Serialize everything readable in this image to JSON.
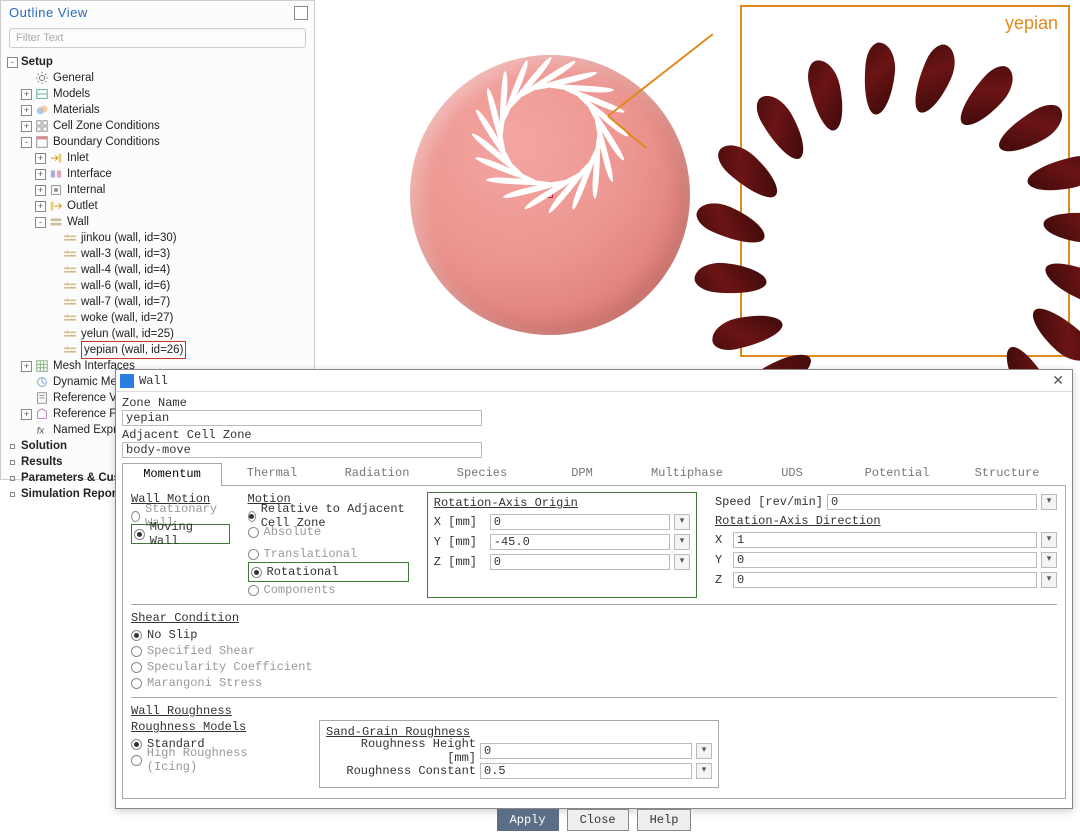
{
  "outline": {
    "title": "Outline View",
    "filter_placeholder": "Filter Text",
    "nodes": [
      {
        "lvl": 1,
        "tw": "-",
        "icon": "none",
        "label": "Setup",
        "bold": true
      },
      {
        "lvl": 2,
        "tw": " ",
        "icon": "gear",
        "label": "General"
      },
      {
        "lvl": 2,
        "tw": "+",
        "icon": "models",
        "label": "Models"
      },
      {
        "lvl": 2,
        "tw": "+",
        "icon": "materials",
        "label": "Materials"
      },
      {
        "lvl": 2,
        "tw": "+",
        "icon": "cell",
        "label": "Cell Zone Conditions"
      },
      {
        "lvl": 2,
        "tw": "-",
        "icon": "bc",
        "label": "Boundary Conditions"
      },
      {
        "lvl": 3,
        "tw": "+",
        "icon": "inlet",
        "label": "Inlet"
      },
      {
        "lvl": 3,
        "tw": "+",
        "icon": "interface",
        "label": "Interface"
      },
      {
        "lvl": 3,
        "tw": "+",
        "icon": "internal",
        "label": "Internal"
      },
      {
        "lvl": 3,
        "tw": "+",
        "icon": "outlet",
        "label": "Outlet"
      },
      {
        "lvl": 3,
        "tw": "-",
        "icon": "wall",
        "label": "Wall"
      },
      {
        "lvl": 4,
        "tw": " ",
        "icon": "wallitem",
        "label": "jinkou (wall, id=30)"
      },
      {
        "lvl": 4,
        "tw": " ",
        "icon": "wallitem",
        "label": "wall-3 (wall, id=3)"
      },
      {
        "lvl": 4,
        "tw": " ",
        "icon": "wallitem",
        "label": "wall-4 (wall, id=4)"
      },
      {
        "lvl": 4,
        "tw": " ",
        "icon": "wallitem",
        "label": "wall-6 (wall, id=6)"
      },
      {
        "lvl": 4,
        "tw": " ",
        "icon": "wallitem",
        "label": "wall-7 (wall, id=7)"
      },
      {
        "lvl": 4,
        "tw": " ",
        "icon": "wallitem",
        "label": "woke (wall, id=27)"
      },
      {
        "lvl": 4,
        "tw": " ",
        "icon": "wallitem",
        "label": "yelun (wall, id=25)"
      },
      {
        "lvl": 4,
        "tw": " ",
        "icon": "wallitem",
        "label": "yepian (wall, id=26)",
        "hl": true
      },
      {
        "lvl": 2,
        "tw": "+",
        "icon": "mesh",
        "label": "Mesh Interfaces"
      },
      {
        "lvl": 2,
        "tw": " ",
        "icon": "dyn",
        "label": "Dynamic Mes"
      },
      {
        "lvl": 2,
        "tw": " ",
        "icon": "ref",
        "label": "Reference Va"
      },
      {
        "lvl": 2,
        "tw": "+",
        "icon": "frame",
        "label": "Reference Fra"
      },
      {
        "lvl": 2,
        "tw": " ",
        "icon": "fx",
        "label": "Named Expre"
      },
      {
        "lvl": 1,
        "tw": "",
        "icon": "bullet",
        "label": "Solution",
        "bold": true
      },
      {
        "lvl": 1,
        "tw": "",
        "icon": "bullet",
        "label": "Results",
        "bold": true
      },
      {
        "lvl": 1,
        "tw": "",
        "icon": "bullet",
        "label": "Parameters & Cus",
        "bold": true
      },
      {
        "lvl": 1,
        "tw": "",
        "icon": "bullet",
        "label": "Simulation Repor",
        "bold": true
      }
    ]
  },
  "callout_label": "yepian",
  "callout": {
    "border_color": "#e08a1c"
  },
  "turbine": {
    "blades": 20,
    "disc_color_light": "#f4a6a3",
    "disc_color_dark": "#d56b64",
    "blade_color": "#6b1414"
  },
  "dlg": {
    "title": "Wall",
    "zone_name_label": "Zone Name",
    "zone_name": "yepian",
    "adj_label": "Adjacent Cell Zone",
    "adj_value": "body-move",
    "tabs": [
      "Momentum",
      "Thermal",
      "Radiation",
      "Species",
      "DPM",
      "Multiphase",
      "UDS",
      "Potential",
      "Structure"
    ],
    "tab_widths": [
      100,
      100,
      110,
      100,
      100,
      110,
      100,
      110,
      110
    ],
    "wall_motion": {
      "title": "Wall Motion",
      "stationary": "Stationary Wall",
      "moving": "Moving Wall"
    },
    "motion": {
      "title": "Motion",
      "rel": "Relative to Adjacent Cell Zone",
      "abs": "Absolute",
      "trans": "Translational",
      "rot": "Rotational",
      "comp": "Components"
    },
    "speed": {
      "label": "Speed [rev/min]",
      "value": "0"
    },
    "origin": {
      "title": "Rotation-Axis Origin",
      "x_label": "X [mm]",
      "x": "0",
      "y_label": "Y [mm]",
      "y": "-45.0",
      "z_label": "Z [mm]",
      "z": "0"
    },
    "dir": {
      "title": "Rotation-Axis Direction",
      "x_label": "X",
      "x": "1",
      "y_label": "Y",
      "y": "0",
      "z_label": "Z",
      "z": "0"
    },
    "shear": {
      "title": "Shear Condition",
      "no_slip": "No Slip",
      "spec": "Specified Shear",
      "specu": "Specularity Coefficient",
      "maran": "Marangoni Stress"
    },
    "rough": {
      "title": "Wall Roughness",
      "models": "Roughness Models",
      "std": "Standard",
      "high": "High Roughness (Icing)",
      "sand": "Sand-Grain Roughness",
      "h_label": "Roughness Height [mm]",
      "h": "0",
      "c_label": "Roughness Constant",
      "c": "0.5"
    },
    "btn_apply": "Apply",
    "btn_close": "Close",
    "btn_help": "Help"
  },
  "highlight_color": "#3d7a34"
}
